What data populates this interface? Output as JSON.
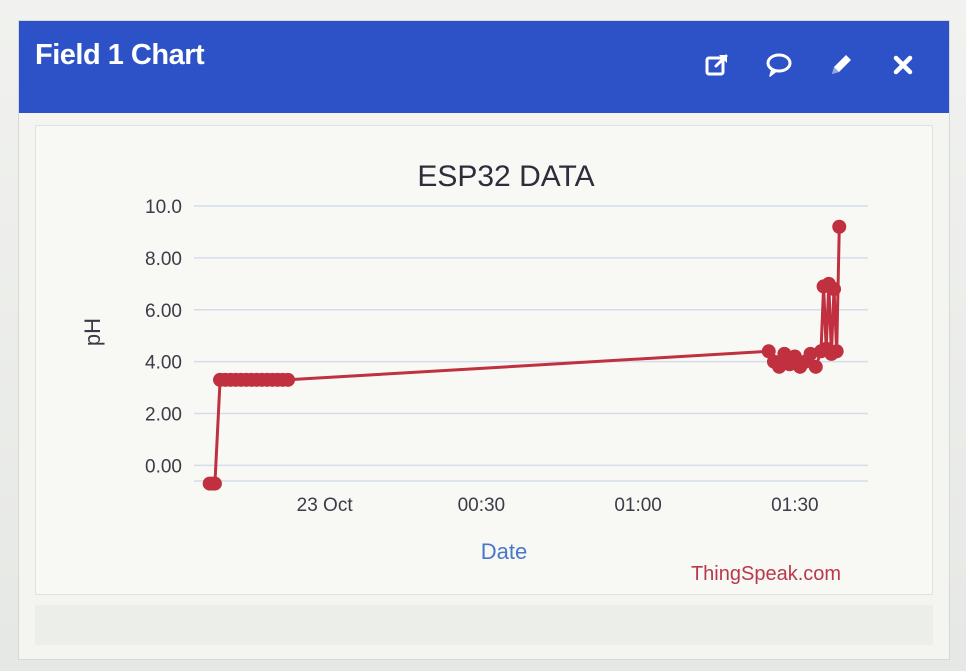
{
  "widget": {
    "title": "Field 1 Chart",
    "icons": [
      "external-link-icon",
      "comment-icon",
      "pencil-icon",
      "close-icon"
    ]
  },
  "colors": {
    "header": "#2d52c8",
    "series": "#c0303f",
    "xlabel": "#4a78c8",
    "credit": "#b83a4a",
    "grid": "#d6ddea"
  },
  "chart_data": {
    "type": "line",
    "title": "ESP32 DATA",
    "xlabel": "Date",
    "ylabel": "pH",
    "credit": "ThingSpeak.com",
    "ylim": [
      -0.6,
      10.0
    ],
    "y_ticks": [
      "10.0",
      "8.00",
      "6.00",
      "4.00",
      "2.00",
      "0.00"
    ],
    "y_tick_values": [
      10,
      8,
      6,
      4,
      2,
      0
    ],
    "x_ticks": [
      "23 Oct",
      "00:30",
      "01:00",
      "01:30"
    ],
    "x_tick_values": [
      0,
      30,
      60,
      90
    ],
    "xlim": [
      -25,
      104
    ],
    "grid": true,
    "series": [
      {
        "x": [
          -22,
          -21.5,
          -21,
          -20,
          -20,
          -19,
          -18,
          -17,
          -16,
          -15,
          -14,
          -13,
          -12,
          -11,
          -10,
          -9,
          -8,
          -7,
          85,
          86,
          87,
          88,
          89,
          90,
          91,
          92,
          93,
          94,
          95,
          95.5,
          96,
          96.5,
          97,
          97.5,
          98,
          98.5
        ],
        "y": [
          -0.7,
          -0.7,
          -0.7,
          3.3,
          3.3,
          3.3,
          3.3,
          3.3,
          3.3,
          3.3,
          3.3,
          3.3,
          3.3,
          3.3,
          3.3,
          3.3,
          3.3,
          3.3,
          4.4,
          4.0,
          3.8,
          4.3,
          3.9,
          4.2,
          3.8,
          4.0,
          4.3,
          3.8,
          4.4,
          6.9,
          4.5,
          7.0,
          4.3,
          6.8,
          4.4,
          9.2
        ]
      }
    ]
  }
}
